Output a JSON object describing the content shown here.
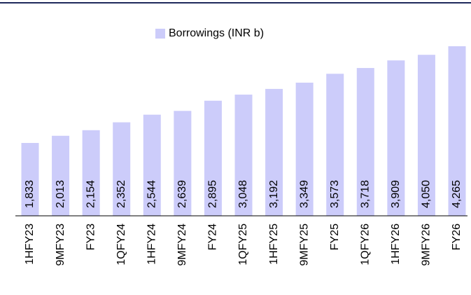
{
  "chart_data": {
    "type": "bar",
    "categories": [
      "1HFY23",
      "9MFY23",
      "FY23",
      "1QFY24",
      "1HFY24",
      "9MFY24",
      "FY24",
      "1QFY25",
      "1HFY25",
      "9MFY25",
      "FY25",
      "1QFY26",
      "1HFY26",
      "9MFY26",
      "FY26"
    ],
    "series": [
      {
        "name": "Borrowings (INR b)",
        "color": "#ccccfa",
        "values": [
          1833,
          2013,
          2154,
          2352,
          2544,
          2639,
          2895,
          3048,
          3192,
          3349,
          3573,
          3718,
          3909,
          4050,
          4265
        ],
        "value_labels": [
          "1,833",
          "2,013",
          "2,154",
          "2,352",
          "2,544",
          "2,639",
          "2,895",
          "3,048",
          "3,192",
          "3,349",
          "3,573",
          "3,718",
          "3,909",
          "4,050",
          "4,265"
        ]
      }
    ]
  }
}
